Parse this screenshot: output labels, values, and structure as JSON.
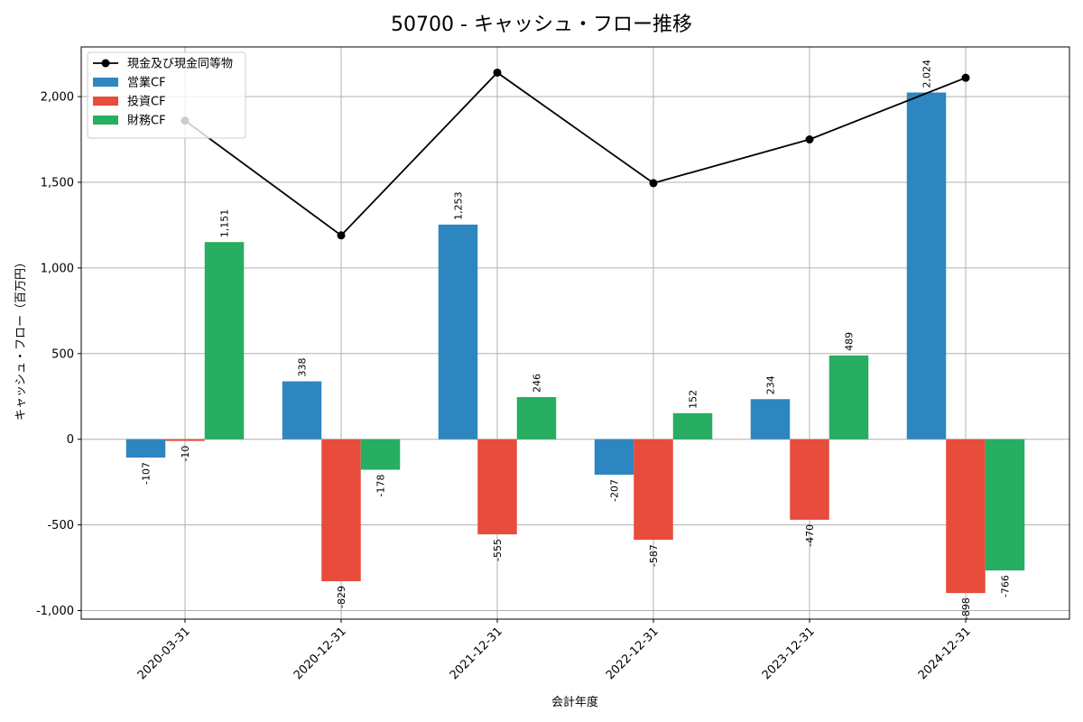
{
  "chart_data": {
    "type": "bar",
    "title": "50700 - キャッシュ・フロー推移",
    "xlabel": "会計年度",
    "ylabel": "キャッシュ・フロー（百万円）",
    "categories": [
      "2020-03-31",
      "2020-12-31",
      "2021-12-31",
      "2022-12-31",
      "2023-12-31",
      "2024-12-31"
    ],
    "ylim": [
      -1050,
      2290
    ],
    "yticks": [
      -1000,
      -500,
      0,
      500,
      1000,
      1500,
      2000
    ],
    "ytick_labels": [
      "-1,000",
      "-500",
      "0",
      "500",
      "1,000",
      "1,500",
      "2,000"
    ],
    "grid": true,
    "legend_position": "top-left",
    "series": [
      {
        "name": "営業CF",
        "kind": "bar",
        "color": "#2e86c1",
        "values": [
          -107,
          338,
          1253,
          -207,
          234,
          2024
        ],
        "labels": [
          "-107",
          "338",
          "1,253",
          "-207",
          "234",
          "2,024"
        ]
      },
      {
        "name": "投資CF",
        "kind": "bar",
        "color": "#e74c3c",
        "values": [
          -10,
          -829,
          -555,
          -587,
          -470,
          -898
        ],
        "labels": [
          "-10",
          "-829",
          "-555",
          "-587",
          "-470",
          "-898"
        ]
      },
      {
        "name": "財務CF",
        "kind": "bar",
        "color": "#27ae60",
        "values": [
          1151,
          -178,
          246,
          152,
          489,
          -766
        ],
        "labels": [
          "1,151",
          "-178",
          "246",
          "152",
          "489",
          "-766"
        ]
      },
      {
        "name": "現金及び現金同等物",
        "kind": "line",
        "color": "#000000",
        "values": [
          1860,
          1190,
          2140,
          1495,
          1750,
          2110
        ]
      }
    ]
  }
}
